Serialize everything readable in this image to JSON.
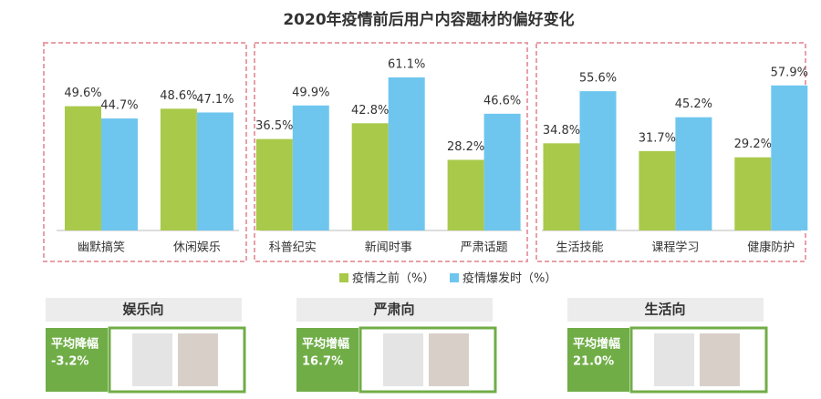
{
  "chart_data": {
    "type": "bar",
    "title": "2020年疫情前后用户内容题材的偏好变化",
    "categories": [
      "幽默搞笑",
      "休闲娱乐",
      "科普纪实",
      "新闻时事",
      "严肃话题",
      "生活技能",
      "课程学习",
      "健康防护"
    ],
    "series": [
      {
        "name": "疫情之前（%）",
        "color": "#a9c94a",
        "values": [
          49.6,
          48.6,
          36.5,
          42.8,
          28.2,
          34.8,
          31.7,
          29.2
        ],
        "value_labels": [
          "49.6%",
          "48.6%",
          "36.5%",
          "42.8%",
          "28.2%",
          "34.8%",
          "31.7%",
          "29.2%"
        ]
      },
      {
        "name": "疫情爆发时（%）",
        "color": "#6ec6ee",
        "values": [
          44.7,
          47.1,
          49.9,
          61.1,
          46.6,
          55.6,
          45.2,
          57.9
        ],
        "value_labels": [
          "44.7%",
          "47.1%",
          "49.9%",
          "61.1%",
          "46.6%",
          "55.6%",
          "45.2%",
          "57.9%"
        ]
      }
    ]
  },
  "panels": [
    {
      "title": "娱乐向",
      "label": "平均降幅",
      "value": "-3.2%"
    },
    {
      "title": "严肃向",
      "label": "平均增幅",
      "value": "16.7%"
    },
    {
      "title": "生活向",
      "label": "平均增幅",
      "value": "21.0%"
    }
  ]
}
